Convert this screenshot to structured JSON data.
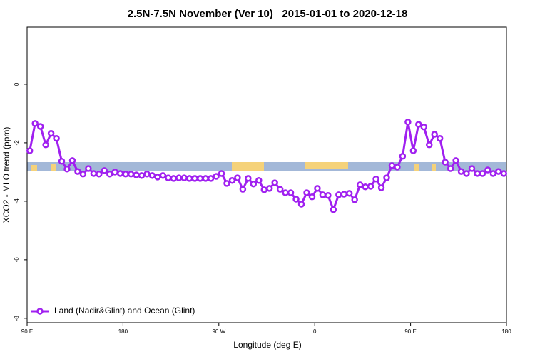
{
  "chart_data": {
    "type": "line",
    "title": "2.5N-7.5N November (Ver 10)   2015-01-01 to 2020-12-18",
    "x_label": "Longitude (deg E)",
    "y_label": "XCO2 - MLO trend (ppm)",
    "xlim": [
      90,
      540
    ],
    "ylim": [
      -8.15,
      1.95
    ],
    "xticks": [
      {
        "value": 90,
        "label": "90 E"
      },
      180,
      {
        "value": 270,
        "label": "90 W"
      },
      {
        "value": 360,
        "label": "0"
      },
      {
        "value": 450,
        "label": "90 E"
      },
      {
        "value": 540,
        "label": "180"
      }
    ],
    "yticks": [
      0,
      -2,
      -4,
      -6,
      -8
    ],
    "legend": "bottom-left",
    "x": [
      92.5,
      97.5,
      102.5,
      107.5,
      112.5,
      117.5,
      122.5,
      127.5,
      132.5,
      137.5,
      142.5,
      147.5,
      152.5,
      157.5,
      162.5,
      167.5,
      172.5,
      177.5,
      182.5,
      187.5,
      192.5,
      197.5,
      202.5,
      207.5,
      212.5,
      217.5,
      222.5,
      227.5,
      232.5,
      237.5,
      242.5,
      247.5,
      252.5,
      257.5,
      262.5,
      267.5,
      272.5,
      277.5,
      282.5,
      287.5,
      292.5,
      297.5,
      302.5,
      307.5,
      312.5,
      317.5,
      322.5,
      327.5,
      332.5,
      337.5,
      342.5,
      347.5,
      352.5,
      357.5,
      362.5,
      367.5,
      372.5,
      377.5,
      382.5,
      387.5,
      392.5,
      397.5,
      402.5,
      407.5,
      412.5,
      417.5,
      422.5,
      427.5,
      432.5,
      437.5,
      442.5,
      447.5,
      452.5,
      457.5,
      462.5,
      467.5,
      472.5,
      477.5,
      482.5,
      487.5,
      492.5,
      497.5,
      502.5,
      507.5,
      512.5,
      517.5,
      522.5,
      527.5,
      532.5,
      537.5
    ],
    "series": [
      {
        "name": "Land (Nadir&Glint) and Ocean (Glint)",
        "color": "#a020f0",
        "values": [
          -2.27,
          -1.34,
          -1.44,
          -2.07,
          -1.68,
          -1.85,
          -2.63,
          -2.9,
          -2.61,
          -2.98,
          -3.07,
          -2.88,
          -3.05,
          -3.07,
          -2.95,
          -3.07,
          -3.0,
          -3.05,
          -3.07,
          -3.07,
          -3.1,
          -3.12,
          -3.07,
          -3.12,
          -3.17,
          -3.12,
          -3.2,
          -3.22,
          -3.2,
          -3.2,
          -3.22,
          -3.22,
          -3.22,
          -3.22,
          -3.22,
          -3.15,
          -3.05,
          -3.39,
          -3.29,
          -3.2,
          -3.59,
          -3.22,
          -3.41,
          -3.29,
          -3.61,
          -3.56,
          -3.37,
          -3.59,
          -3.71,
          -3.71,
          -3.93,
          -4.1,
          -3.71,
          -3.85,
          -3.56,
          -3.78,
          -3.8,
          -4.29,
          -3.78,
          -3.76,
          -3.73,
          -3.95,
          -3.44,
          -3.51,
          -3.49,
          -3.24,
          -3.54,
          -3.2,
          -2.78,
          -2.83,
          -2.46,
          -1.29,
          -2.27,
          -1.37,
          -1.46,
          -2.07,
          -1.71,
          -1.85,
          -2.66,
          -2.88,
          -2.61,
          -2.98,
          -3.05,
          -2.88,
          -3.05,
          -3.05,
          -2.93,
          -3.05,
          -2.98,
          -3.05
        ]
      }
    ]
  }
}
